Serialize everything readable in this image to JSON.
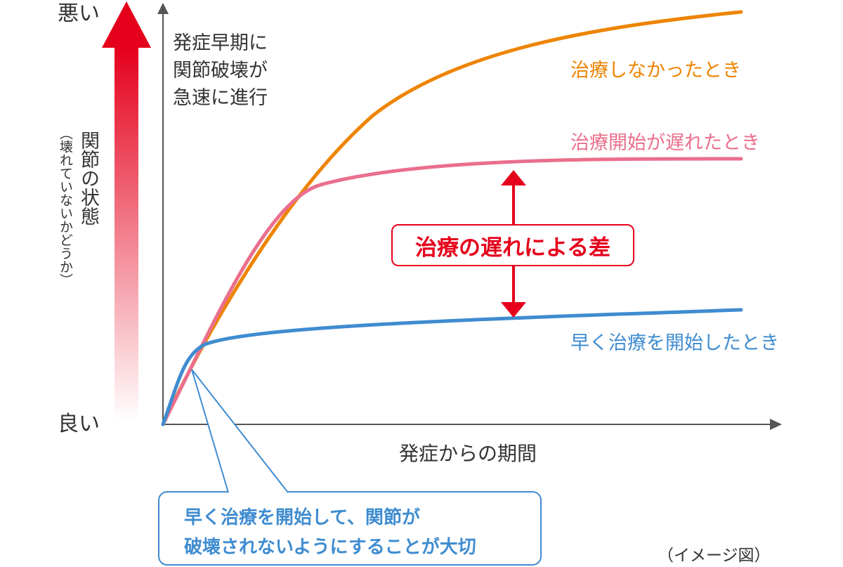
{
  "y_axis": {
    "top_label": "悪い",
    "bottom_label": "良い",
    "title": "関節の状態",
    "subtitle": "（壊れていないかどうか）"
  },
  "x_axis": {
    "label": "発症からの期間"
  },
  "annotation_early": [
    "発症早期に",
    "関節破壊が",
    "急速に進行"
  ],
  "curves": {
    "no_treatment": {
      "label": "治療しなかったとき",
      "color": "#ee8400"
    },
    "late_treatment": {
      "label": "治療開始が遅れたとき",
      "color": "#ea6f8c"
    },
    "early_treatment": {
      "label": "早く治療を開始したとき",
      "color": "#3f8cd0"
    }
  },
  "gap_label": "治療の遅れによる差",
  "callout": [
    "早く治療を開始して、関節が",
    "破壊されないようにすることが大切"
  ],
  "note": "（イメージ図）",
  "colors": {
    "arrow_red": "#e5001c",
    "axis": "#555555"
  }
}
